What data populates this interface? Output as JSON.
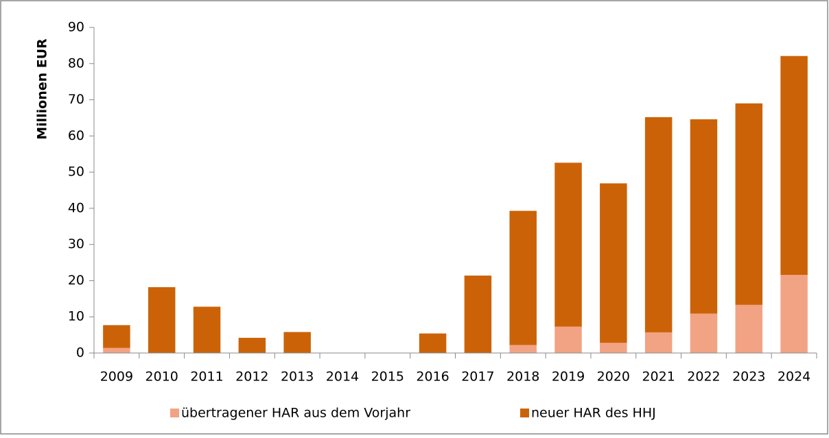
{
  "chart_data": {
    "type": "stacked_bar",
    "y_label": "Millionen EUR",
    "categories": [
      "2009",
      "2010",
      "2011",
      "2012",
      "2013",
      "2014",
      "2015",
      "2016",
      "2017",
      "2018",
      "2019",
      "2020",
      "2021",
      "2022",
      "2023",
      "2024"
    ],
    "series": [
      {
        "name": "übertragener HAR aus dem Vorjahr",
        "color": "#f2a384",
        "values": [
          1.4,
          0,
          0,
          0,
          0,
          0,
          0,
          0,
          0,
          2.2,
          7.3,
          2.8,
          5.7,
          10.9,
          13.3,
          21.6
        ]
      },
      {
        "name": "neuer HAR des HHJ",
        "color": "#cc6208",
        "values": [
          6.3,
          18.2,
          12.8,
          4.2,
          5.8,
          0,
          0,
          5.4,
          21.4,
          37.1,
          45.3,
          44.1,
          59.5,
          53.7,
          55.7,
          60.5
        ]
      }
    ],
    "ylim": [
      0,
      90
    ],
    "yticks": [
      0,
      10,
      20,
      30,
      40,
      50,
      60,
      70,
      80,
      90
    ],
    "legend": "bottom"
  }
}
